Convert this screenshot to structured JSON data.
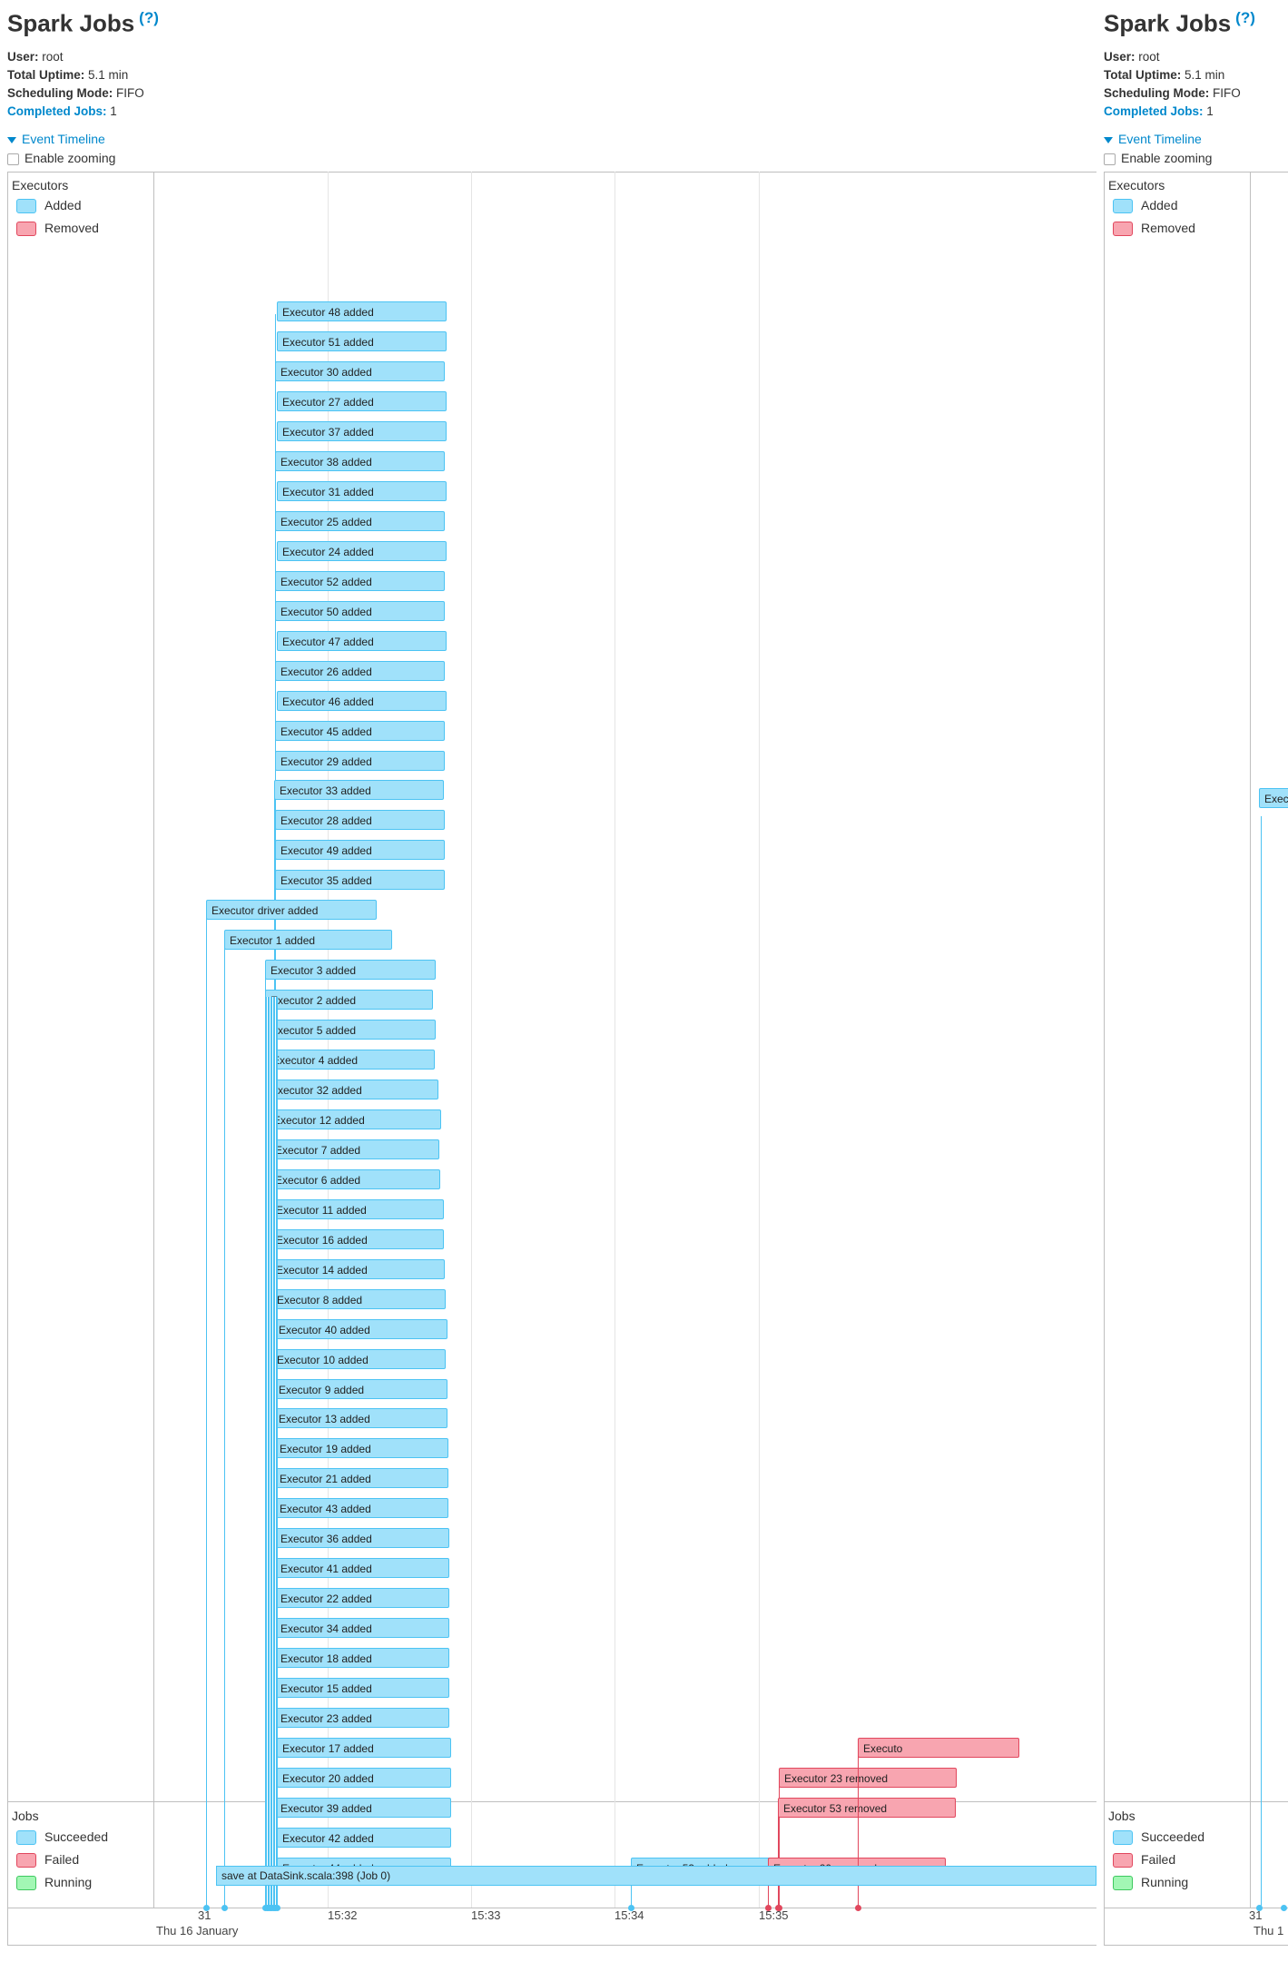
{
  "page": {
    "title": "Spark Jobs",
    "help": "(?)",
    "user_label": "User:",
    "user": "root",
    "uptime_label": "Total Uptime:",
    "uptime": "5.1 min",
    "sched_label": "Scheduling Mode:",
    "sched": "FIFO",
    "completed_label": "Completed Jobs:",
    "completed": "1",
    "event_timeline": "Event Timeline",
    "enable_zooming": "Enable zooming"
  },
  "timeline": {
    "executors_group": "Executors",
    "executor_legend": [
      {
        "label": "Added",
        "color": "#a0e1fa"
      },
      {
        "label": "Removed",
        "color": "#f8a5b0"
      }
    ],
    "jobs_group": "Jobs",
    "job_legend": [
      {
        "label": "Succeeded",
        "color": "#a0e1fa"
      },
      {
        "label": "Failed",
        "color": "#f8a5b0"
      },
      {
        "label": "Running",
        "color": "#a2f7b4"
      }
    ],
    "axis_ticks": [
      "31",
      "15:32",
      "15:33",
      "15:34",
      "15:35"
    ],
    "axis_date": "Thu 16 January",
    "events": [
      {
        "label": "Executor 48 added",
        "kind": "added"
      },
      {
        "label": "Executor 51 added",
        "kind": "added"
      },
      {
        "label": "Executor 30 added",
        "kind": "added"
      },
      {
        "label": "Executor 27 added",
        "kind": "added"
      },
      {
        "label": "Executor 37 added",
        "kind": "added"
      },
      {
        "label": "Executor 38 added",
        "kind": "added"
      },
      {
        "label": "Executor 31 added",
        "kind": "added"
      },
      {
        "label": "Executor 25 added",
        "kind": "added"
      },
      {
        "label": "Executor 24 added",
        "kind": "added"
      },
      {
        "label": "Executor 52 added",
        "kind": "added"
      },
      {
        "label": "Executor 50 added",
        "kind": "added"
      },
      {
        "label": "Executor 47 added",
        "kind": "added"
      },
      {
        "label": "Executor 26 added",
        "kind": "added"
      },
      {
        "label": "Executor 46 added",
        "kind": "added"
      },
      {
        "label": "Executor 45 added",
        "kind": "added"
      },
      {
        "label": "Executor 29 added",
        "kind": "added"
      },
      {
        "label": "Executor 33 added",
        "kind": "added"
      },
      {
        "label": "Executor 28 added",
        "kind": "added"
      },
      {
        "label": "Executor 49 added",
        "kind": "added"
      },
      {
        "label": "Executor 35 added",
        "kind": "added"
      },
      {
        "label": "Executor driver added",
        "kind": "added"
      },
      {
        "label": "Executor 1 added",
        "kind": "added"
      },
      {
        "label": "Executor 3 added",
        "kind": "added"
      },
      {
        "label": "Executor 2 added",
        "kind": "added"
      },
      {
        "label": "Executor 5 added",
        "kind": "added"
      },
      {
        "label": "Executor 4 added",
        "kind": "added"
      },
      {
        "label": "Executor 32 added",
        "kind": "added"
      },
      {
        "label": "Executor 12 added",
        "kind": "added"
      },
      {
        "label": "Executor 7 added",
        "kind": "added"
      },
      {
        "label": "Executor 6 added",
        "kind": "added"
      },
      {
        "label": "Executor 11 added",
        "kind": "added"
      },
      {
        "label": "Executor 16 added",
        "kind": "added"
      },
      {
        "label": "Executor 14 added",
        "kind": "added"
      },
      {
        "label": "Executor 8 added",
        "kind": "added"
      },
      {
        "label": "Executor 40 added",
        "kind": "added"
      },
      {
        "label": "Executor 10 added",
        "kind": "added"
      },
      {
        "label": "Executor 9 added",
        "kind": "added"
      },
      {
        "label": "Executor 13 added",
        "kind": "added"
      },
      {
        "label": "Executor 19 added",
        "kind": "added"
      },
      {
        "label": "Executor 21 added",
        "kind": "added"
      },
      {
        "label": "Executor 43 added",
        "kind": "added"
      },
      {
        "label": "Executor 36 added",
        "kind": "added"
      },
      {
        "label": "Executor 41 added",
        "kind": "added"
      },
      {
        "label": "Executor 22 added",
        "kind": "added"
      },
      {
        "label": "Executor 34 added",
        "kind": "added"
      },
      {
        "label": "Executor 18 added",
        "kind": "added"
      },
      {
        "label": "Executor 15 added",
        "kind": "added"
      },
      {
        "label": "Executor 23 added",
        "kind": "added"
      },
      {
        "label": "Executor 17 added",
        "kind": "added"
      },
      {
        "label": "Executor 20 added",
        "kind": "added"
      },
      {
        "label": "Executor 39 added",
        "kind": "added"
      },
      {
        "label": "Executor 42 added",
        "kind": "added"
      },
      {
        "label": "Executor 44 added",
        "kind": "added"
      },
      {
        "label": "Executor 53 added",
        "kind": "added"
      },
      {
        "label": "Executor 23 removed",
        "kind": "removed"
      },
      {
        "label": "Executor 53 removed",
        "kind": "removed"
      },
      {
        "label": "Executor 20 removed",
        "kind": "removed"
      },
      {
        "label": "Executo",
        "kind": "removed"
      }
    ],
    "jobs": [
      {
        "label": "save at DataSink.scala:398 (Job 0)",
        "status": "succeeded"
      }
    ],
    "right_panel_partial": {
      "event_label": "Exec",
      "date_label": "Thu 1",
      "tick_label": "31"
    }
  }
}
